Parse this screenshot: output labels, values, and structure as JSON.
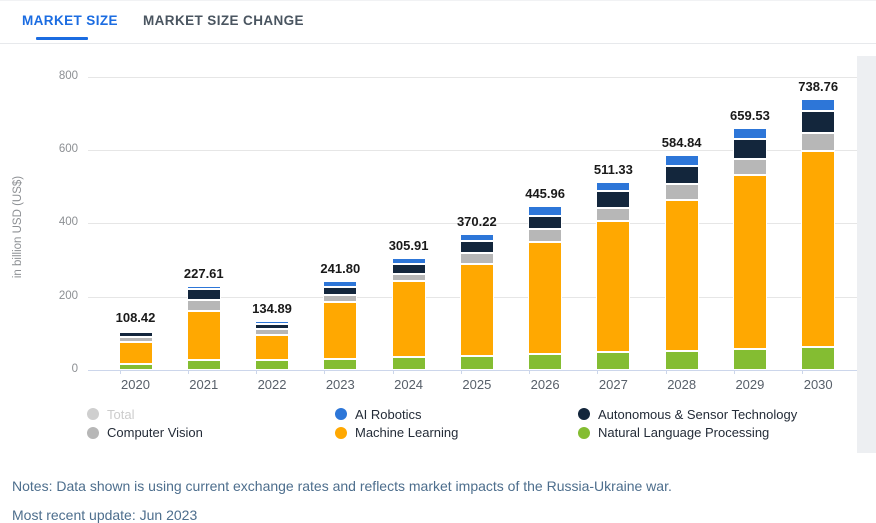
{
  "tabs": [
    {
      "label": "MARKET SIZE",
      "active": true
    },
    {
      "label": "MARKET SIZE CHANGE",
      "active": false
    }
  ],
  "notes": "Notes: Data shown is using current exchange rates and reflects market impacts of the Russia-Ukraine war.",
  "update_note": "Most recent update: Jun 2023",
  "colors": {
    "tab_active": "#1b6ce1",
    "notes_text": "#4d6e8d",
    "gridline": "#e6e6e6",
    "axis_line": "#ccd6eb"
  },
  "chart_data": {
    "type": "bar",
    "stacked": true,
    "title": "",
    "xlabel": "",
    "ylabel": "in billion USD (US$)",
    "ylim": [
      0,
      800
    ],
    "yticks": [
      0,
      200,
      400,
      600,
      800
    ],
    "grid": true,
    "legend_position": "bottom",
    "categories": [
      "2020",
      "2021",
      "2022",
      "2023",
      "2024",
      "2025",
      "2026",
      "2027",
      "2028",
      "2029",
      "2030"
    ],
    "series": [
      {
        "name": "Natural Language Processing",
        "color": "#84BD32",
        "values": [
          15.5,
          26.2,
          25.9,
          29.1,
          34.2,
          38.2,
          42.7,
          50.0,
          51.5,
          56.5,
          62.8
        ]
      },
      {
        "name": "Machine Learning",
        "color": "#FFA801",
        "values": [
          61.0,
          135.9,
          69.8,
          156.6,
          207.7,
          250.1,
          305.4,
          356.7,
          411.3,
          474.7,
          534.9
        ]
      },
      {
        "name": "Computer Vision",
        "color": "#B7B7B7",
        "values": [
          12.8,
          28.9,
          16.1,
          18.1,
          19.5,
          30.0,
          36.2,
          33.6,
          45.0,
          43.7,
          48.3
        ]
      },
      {
        "name": "Autonomous & Sensor Technology",
        "color": "#13263C",
        "values": [
          13.7,
          30.5,
          14.2,
          21.7,
          27.8,
          33.6,
          34.5,
          48.3,
          47.2,
          54.6,
          60.9
        ]
      },
      {
        "name": "AI Robotics",
        "color": "#2D76D8",
        "values": [
          5.4,
          6.1,
          8.9,
          16.3,
          16.7,
          18.3,
          27.2,
          22.7,
          29.8,
          30.0,
          31.9
        ]
      }
    ],
    "totals": [
      108.42,
      227.61,
      134.89,
      241.8,
      305.91,
      370.22,
      445.96,
      511.33,
      584.84,
      659.53,
      738.76
    ],
    "total_labels": [
      "108.42",
      "227.61",
      "134.89",
      "241.80",
      "305.91",
      "370.22",
      "445.96",
      "511.33",
      "584.84",
      "659.53",
      "738.76"
    ],
    "legend": [
      {
        "label": "Total",
        "color": "#cfcfcf",
        "disabled": true
      },
      {
        "label": "AI Robotics",
        "color": "#2D76D8",
        "disabled": false
      },
      {
        "label": "Autonomous & Sensor Technology",
        "color": "#13263C",
        "disabled": false
      },
      {
        "label": "Computer Vision",
        "color": "#B7B7B7",
        "disabled": false
      },
      {
        "label": "Machine Learning",
        "color": "#FFA801",
        "disabled": false
      },
      {
        "label": "Natural Language Processing",
        "color": "#84BD32",
        "disabled": false
      }
    ]
  }
}
